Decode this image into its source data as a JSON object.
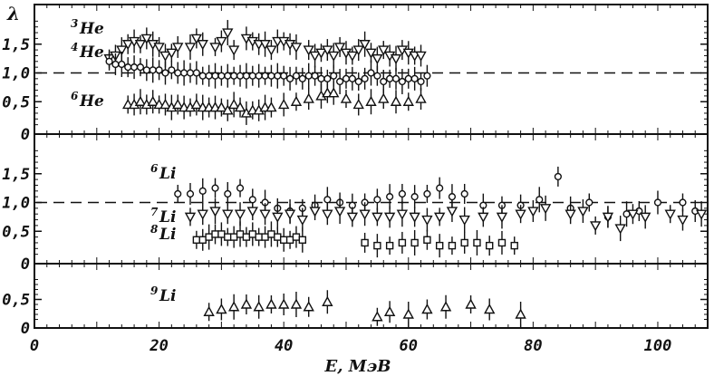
{
  "chart_data": {
    "type": "scatter",
    "xlabel": "E, МэВ",
    "ylabel": "λ",
    "xlim": [
      0,
      108
    ],
    "x_ticks": [
      "0",
      "20",
      "40",
      "60",
      "80",
      "100"
    ],
    "x_tick_values": [
      0,
      20,
      40,
      60,
      80,
      100
    ],
    "grid": false,
    "panels": [
      {
        "ylim": [
          0,
          2.0
        ],
        "y_ticks": [
          "0,5",
          "1,0",
          "1,5"
        ],
        "y_tick_values": [
          0.5,
          1.0,
          1.5
        ],
        "y_zero_label": "0",
        "reference_line": 1.0,
        "series": [
          {
            "label_sup": "3",
            "label": "He",
            "marker": "triangle-down",
            "x": [
              12,
              13,
              14,
              15,
              16,
              17,
              18,
              19,
              20,
              21,
              22,
              23,
              25,
              26,
              27,
              29,
              30,
              31,
              32,
              34,
              35,
              36,
              37,
              38,
              39,
              40,
              41,
              42,
              44,
              45,
              46,
              47,
              48,
              49,
              50,
              51,
              52,
              53,
              54,
              55,
              56,
              57,
              58,
              59,
              60,
              61,
              62
            ],
            "y": [
              1.25,
              1.3,
              1.4,
              1.5,
              1.55,
              1.5,
              1.6,
              1.5,
              1.45,
              1.3,
              1.35,
              1.45,
              1.45,
              1.6,
              1.5,
              1.45,
              1.55,
              1.7,
              1.4,
              1.6,
              1.55,
              1.5,
              1.5,
              1.4,
              1.55,
              1.55,
              1.5,
              1.45,
              1.4,
              1.3,
              1.35,
              1.4,
              1.3,
              1.45,
              1.35,
              1.3,
              1.4,
              1.5,
              1.35,
              1.25,
              1.4,
              1.3,
              1.25,
              1.4,
              1.35,
              1.3,
              1.3
            ]
          },
          {
            "label_sup": "4",
            "label": "He",
            "marker": "circle",
            "x": [
              12,
              13,
              14,
              15,
              16,
              17,
              18,
              19,
              20,
              21,
              22,
              23,
              24,
              25,
              26,
              27,
              28,
              29,
              30,
              31,
              32,
              33,
              34,
              35,
              36,
              37,
              38,
              39,
              40,
              41,
              42,
              43,
              44,
              45,
              46,
              47,
              48,
              49,
              50,
              51,
              52,
              53,
              54,
              55,
              56,
              57,
              58,
              59,
              60,
              61,
              62,
              63
            ],
            "y": [
              1.2,
              1.15,
              1.15,
              1.1,
              1.1,
              1.1,
              1.05,
              1.05,
              1.05,
              1.0,
              1.05,
              1.0,
              1.0,
              1.0,
              1.0,
              0.95,
              0.95,
              0.95,
              0.95,
              0.95,
              0.95,
              0.95,
              0.95,
              0.95,
              0.95,
              0.95,
              0.95,
              0.95,
              0.95,
              0.9,
              0.95,
              0.9,
              0.95,
              0.95,
              0.9,
              0.9,
              0.95,
              0.85,
              0.9,
              0.9,
              0.85,
              0.9,
              1.0,
              0.95,
              0.85,
              0.9,
              0.9,
              0.85,
              0.9,
              0.9,
              0.85,
              0.95
            ]
          },
          {
            "label_sup": "6",
            "label": "He",
            "marker": "triangle-up",
            "x": [
              15,
              16,
              17,
              18,
              19,
              20,
              21,
              22,
              23,
              24,
              25,
              26,
              27,
              28,
              29,
              30,
              31,
              32,
              33,
              34,
              35,
              36,
              37,
              38,
              40,
              42,
              44,
              46,
              47,
              48,
              50,
              52,
              54,
              56,
              58,
              60,
              62
            ],
            "y": [
              0.45,
              0.45,
              0.5,
              0.45,
              0.5,
              0.45,
              0.45,
              0.4,
              0.45,
              0.4,
              0.4,
              0.45,
              0.4,
              0.4,
              0.4,
              0.4,
              0.35,
              0.45,
              0.4,
              0.3,
              0.35,
              0.35,
              0.4,
              0.4,
              0.45,
              0.5,
              0.55,
              0.6,
              0.65,
              0.65,
              0.55,
              0.45,
              0.5,
              0.55,
              0.5,
              0.5,
              0.55
            ]
          }
        ]
      },
      {
        "ylim": [
          0,
          2.0
        ],
        "y_ticks": [
          "0,5",
          "1,0",
          "1,5"
        ],
        "y_tick_values": [
          0.5,
          1.0,
          1.5
        ],
        "y_zero_label": "0",
        "reference_line": 1.0,
        "series": [
          {
            "label_sup": "6",
            "label": "Li",
            "marker": "circle",
            "x": [
              23,
              25,
              27,
              29,
              31,
              33,
              35,
              37,
              39,
              41,
              43,
              45,
              47,
              49,
              51,
              53,
              55,
              57,
              59,
              61,
              63,
              65,
              67,
              69,
              72,
              75,
              78,
              81,
              84,
              86,
              89,
              92,
              95,
              97,
              100,
              104,
              106
            ],
            "y": [
              1.15,
              1.15,
              1.2,
              1.25,
              1.15,
              1.25,
              1.05,
              1.0,
              0.9,
              0.85,
              0.9,
              0.95,
              1.05,
              1.0,
              0.95,
              1.0,
              1.05,
              1.1,
              1.15,
              1.1,
              1.15,
              1.25,
              1.1,
              1.15,
              0.95,
              0.95,
              0.95,
              1.05,
              1.45,
              0.9,
              1.0,
              0.75,
              0.8,
              0.85,
              1.0,
              1.0,
              0.85
            ]
          },
          {
            "label_sup": "7",
            "label": "Li",
            "marker": "triangle-down",
            "x": [
              25,
              27,
              29,
              31,
              33,
              35,
              37,
              39,
              41,
              43,
              45,
              47,
              49,
              51,
              53,
              55,
              57,
              59,
              61,
              63,
              65,
              67,
              69,
              72,
              75,
              78,
              80,
              82,
              86,
              88,
              90,
              92,
              94,
              96,
              98,
              102,
              104,
              107
            ],
            "y": [
              0.75,
              0.8,
              0.85,
              0.8,
              0.8,
              0.85,
              0.8,
              0.75,
              0.8,
              0.7,
              0.85,
              0.8,
              0.85,
              0.75,
              0.8,
              0.75,
              0.75,
              0.8,
              0.75,
              0.7,
              0.75,
              0.85,
              0.7,
              0.75,
              0.75,
              0.8,
              0.85,
              0.9,
              0.8,
              0.85,
              0.6,
              0.75,
              0.55,
              0.8,
              0.75,
              0.8,
              0.7,
              0.8
            ]
          },
          {
            "label_sup": "8",
            "label": "Li",
            "marker": "square",
            "x": [
              26,
              27,
              28,
              29,
              30,
              31,
              32,
              33,
              34,
              35,
              36,
              37,
              38,
              39,
              40,
              41,
              42,
              43,
              53,
              55,
              57,
              59,
              61,
              63,
              65,
              67,
              69,
              71,
              73,
              75,
              77
            ],
            "y": [
              0.35,
              0.35,
              0.4,
              0.45,
              0.45,
              0.4,
              0.4,
              0.45,
              0.4,
              0.45,
              0.4,
              0.4,
              0.45,
              0.4,
              0.35,
              0.35,
              0.4,
              0.35,
              0.3,
              0.25,
              0.25,
              0.3,
              0.3,
              0.35,
              0.25,
              0.25,
              0.3,
              0.3,
              0.25,
              0.3,
              0.25
            ]
          }
        ]
      },
      {
        "ylim": [
          0,
          1.0
        ],
        "y_ticks": [
          "0,5"
        ],
        "y_tick_values": [
          0.5
        ],
        "y_zero_label": "0",
        "reference_line": null,
        "series": [
          {
            "label_sup": "9",
            "label": "Li",
            "marker": "triangle-up",
            "x": [
              28,
              30,
              32,
              34,
              36,
              38,
              40,
              42,
              44,
              47,
              55,
              57,
              60,
              63,
              66,
              70,
              73,
              78
            ],
            "y": [
              0.25,
              0.3,
              0.35,
              0.4,
              0.35,
              0.4,
              0.4,
              0.4,
              0.35,
              0.45,
              0.15,
              0.25,
              0.2,
              0.3,
              0.35,
              0.4,
              0.3,
              0.2
            ]
          }
        ]
      }
    ]
  }
}
